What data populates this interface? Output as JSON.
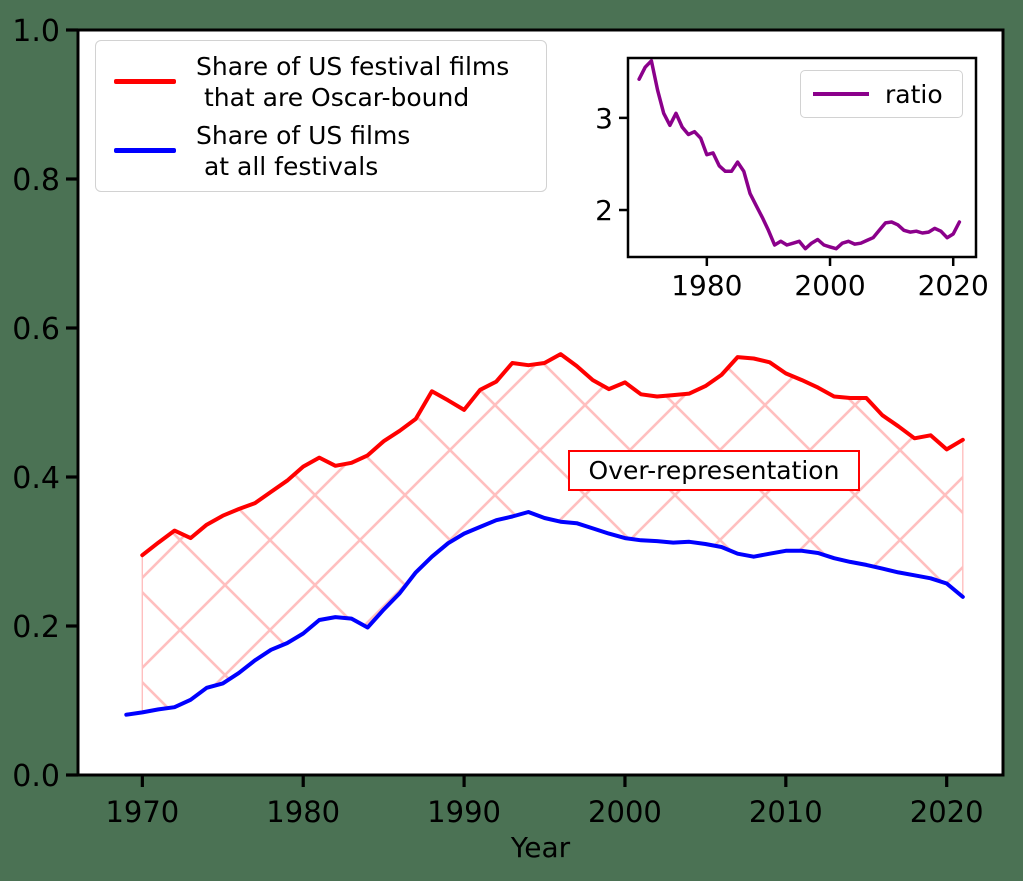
{
  "figure": {
    "background_color": "#4b7254",
    "axes_background": "#ffffff"
  },
  "main_chart": {
    "xlabel": "Year",
    "x_ticks": [
      1970,
      1980,
      1990,
      2000,
      2010,
      2020
    ],
    "y_ticks": [
      "0.0",
      "0.2",
      "0.4",
      "0.6",
      "0.8",
      "1.0"
    ],
    "annotation": {
      "text": "Over-representation",
      "border_color": "#ff0000"
    },
    "hatch_color": "#ffbfbf",
    "legend": {
      "entries": [
        {
          "lines": [
            "Share of US festival films",
            " that are Oscar-bound"
          ],
          "color": "#ff0000"
        },
        {
          "lines": [
            "Share of US films",
            " at all festivals"
          ],
          "color": "#0000ff"
        }
      ]
    }
  },
  "inset_chart": {
    "x_ticks": [
      1980,
      2000,
      2020
    ],
    "y_ticks": [
      2,
      3
    ],
    "legend": {
      "entries": [
        {
          "label": "ratio",
          "color": "#8b008b"
        }
      ]
    }
  },
  "chart_data": [
    {
      "type": "line",
      "title": "",
      "xlabel": "Year",
      "ylabel": "",
      "xlim": [
        1966.0,
        2023.5
      ],
      "ylim": [
        0,
        1
      ],
      "xticks": [
        1970,
        1980,
        1990,
        2000,
        2010,
        2020
      ],
      "yticks": [
        0.0,
        0.2,
        0.4,
        0.6,
        0.8,
        1.0
      ],
      "grid": false,
      "legend_position": "upper left",
      "fill_between": {
        "label": "Over-representation",
        "hatch": "x",
        "edge_color": "#ffbfbf",
        "face_color": "none"
      },
      "series": [
        {
          "name": "Share of US festival films that are Oscar-bound",
          "color": "#ff0000",
          "x_start": 1970,
          "x_end": 2021,
          "x_step": 1,
          "values": [
            0.295,
            0.312,
            0.328,
            0.318,
            0.336,
            0.348,
            0.357,
            0.365,
            0.38,
            0.395,
            0.414,
            0.426,
            0.415,
            0.419,
            0.429,
            0.448,
            0.462,
            0.478,
            0.515,
            0.503,
            0.49,
            0.517,
            0.528,
            0.553,
            0.55,
            0.553,
            0.565,
            0.549,
            0.53,
            0.518,
            0.527,
            0.511,
            0.508,
            0.51,
            0.512,
            0.522,
            0.537,
            0.561,
            0.559,
            0.554,
            0.539,
            0.53,
            0.52,
            0.508,
            0.506,
            0.506,
            0.483,
            0.468,
            0.452,
            0.456,
            0.437,
            0.45
          ]
        },
        {
          "name": "Share of US films at all festivals",
          "color": "#0000ff",
          "x_start": 1969,
          "x_end": 2021,
          "x_step": 1,
          "values": [
            0.081,
            0.084,
            0.088,
            0.091,
            0.101,
            0.117,
            0.123,
            0.137,
            0.154,
            0.168,
            0.177,
            0.19,
            0.208,
            0.212,
            0.21,
            0.198,
            0.222,
            0.244,
            0.272,
            0.293,
            0.311,
            0.324,
            0.333,
            0.342,
            0.347,
            0.353,
            0.345,
            0.34,
            0.338,
            0.331,
            0.324,
            0.318,
            0.315,
            0.314,
            0.312,
            0.313,
            0.31,
            0.306,
            0.297,
            0.293,
            0.297,
            0.301,
            0.301,
            0.298,
            0.291,
            0.286,
            0.282,
            0.277,
            0.272,
            0.268,
            0.264,
            0.257,
            0.239
          ]
        }
      ]
    },
    {
      "type": "line",
      "title": "",
      "xlabel": "",
      "ylabel": "",
      "xlim": [
        1967.2,
        2023.7
      ],
      "ylim": [
        1.49,
        3.65
      ],
      "xticks": [
        1980,
        2000,
        2020
      ],
      "yticks": [
        2,
        3
      ],
      "grid": false,
      "legend_position": "upper right",
      "series": [
        {
          "name": "ratio",
          "color": "#8b008b",
          "x_start": 1969,
          "x_end": 2021,
          "x_step": 1,
          "values": [
            3.42,
            3.55,
            3.62,
            3.3,
            3.05,
            2.92,
            3.05,
            2.9,
            2.82,
            2.85,
            2.78,
            2.6,
            2.62,
            2.48,
            2.42,
            2.42,
            2.52,
            2.42,
            2.18,
            2.05,
            1.92,
            1.78,
            1.62,
            1.66,
            1.62,
            1.64,
            1.66,
            1.58,
            1.64,
            1.68,
            1.62,
            1.6,
            1.58,
            1.64,
            1.66,
            1.63,
            1.64,
            1.67,
            1.7,
            1.78,
            1.86,
            1.87,
            1.84,
            1.78,
            1.76,
            1.77,
            1.75,
            1.76,
            1.8,
            1.77,
            1.7,
            1.74,
            1.87
          ]
        }
      ]
    }
  ]
}
